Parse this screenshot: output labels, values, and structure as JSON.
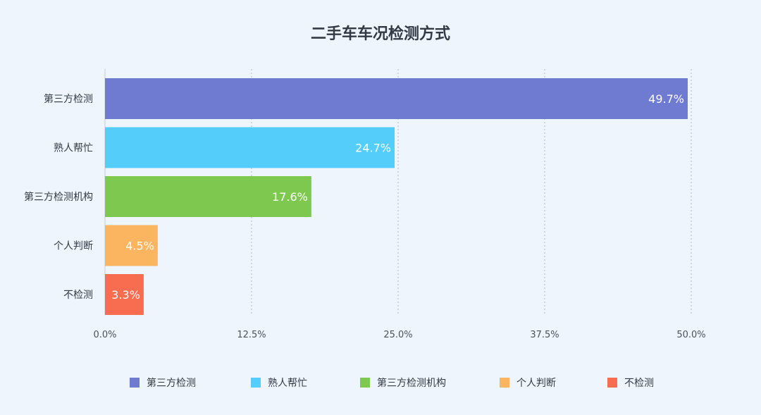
{
  "chart_data": {
    "type": "bar",
    "orientation": "horizontal",
    "title": "二手车车况检测方式",
    "categories": [
      "第三方检测",
      "熟人帮忙",
      "第三方检测机构",
      "个人判断",
      "不检测"
    ],
    "values": [
      49.7,
      24.7,
      17.6,
      4.5,
      3.3
    ],
    "data_labels": [
      "49.7%",
      "24.7%",
      "17.6%",
      "4.5%",
      "3.3%"
    ],
    "colors": [
      "#6e7bd0",
      "#55cdfa",
      "#7ec850",
      "#fbb45f",
      "#f86d4f"
    ],
    "xlim": [
      0,
      50
    ],
    "x_ticks": [
      "0.0%",
      "12.5%",
      "25.0%",
      "37.5%",
      "50.0%"
    ],
    "x_tick_values": [
      0,
      12.5,
      25,
      37.5,
      50
    ],
    "grid": true,
    "legend": "bottom",
    "legend_entries": [
      "第三方检测",
      "熟人帮忙",
      "第三方检测机构",
      "个人判断",
      "不检测"
    ]
  }
}
